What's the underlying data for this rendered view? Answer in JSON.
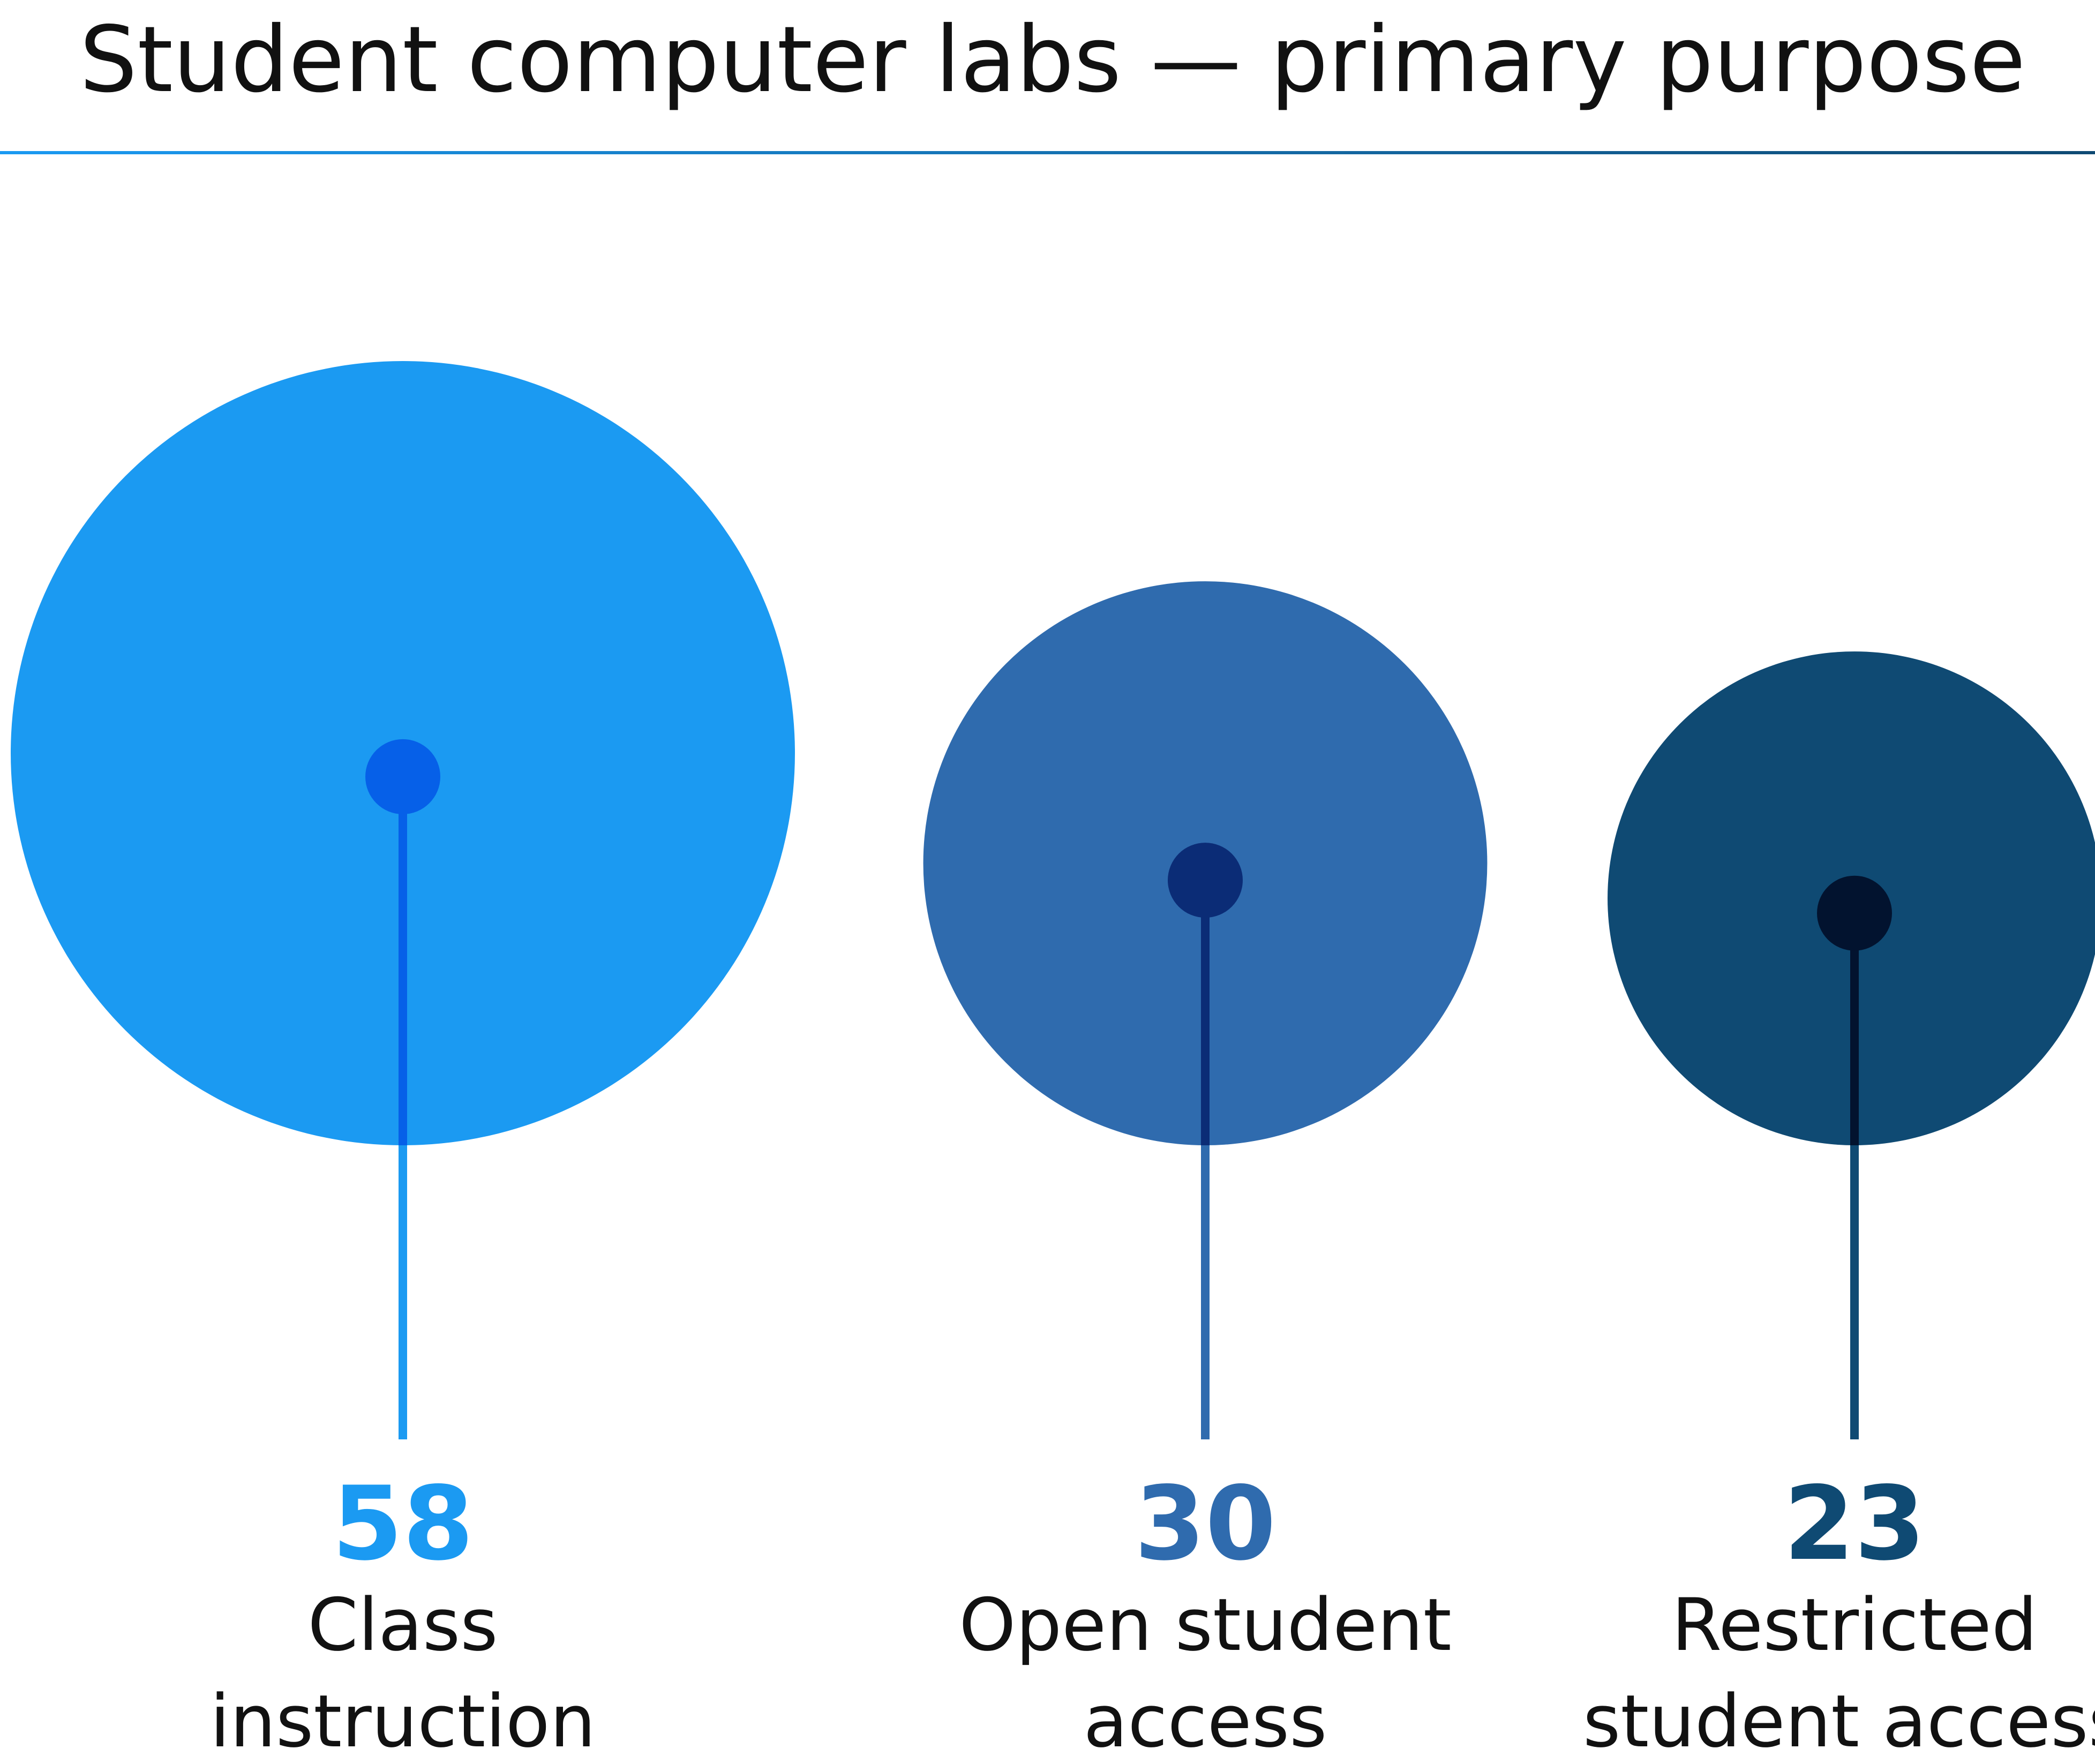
{
  "chart_data": {
    "type": "bubble",
    "title": "Student computer labs — primary purpose",
    "size_encoding": "area proportional to value",
    "series": [
      {
        "category": "Class instruction",
        "label_lines": [
          "Class",
          "instruction"
        ],
        "value": 58,
        "color": "#1B9AF2",
        "dot_color": "#0660E8"
      },
      {
        "category": "Open student access",
        "label_lines": [
          "Open student",
          "access"
        ],
        "value": 30,
        "color": "#2F6BAE",
        "dot_color": "#0B2C76"
      },
      {
        "category": "Restricted student access",
        "label_lines": [
          "Restricted",
          "student access"
        ],
        "value": 23,
        "color": "#0F4A73",
        "dot_color": "#02132F"
      }
    ],
    "rule_gradient": [
      "#1B9AF2",
      "#0F4A73"
    ]
  }
}
